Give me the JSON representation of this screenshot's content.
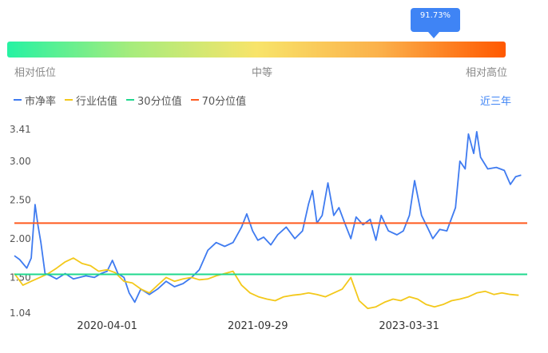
{
  "indicator": {
    "value_label": "91.73%",
    "percentile": 0.9173
  },
  "scale": {
    "low": "相对低位",
    "mid": "中等",
    "high": "相对高位"
  },
  "period": "近三年",
  "colors": {
    "pb": "#3f7bf0",
    "industry": "#f3c81a",
    "p30": "#1fd88e",
    "p70": "#ff5a1f"
  },
  "chart_data": {
    "type": "line",
    "x_ticks": [
      "2020-04-01",
      "2021-09-29",
      "2023-03-31"
    ],
    "y_ticks": [
      "1.04",
      "1.50",
      "2.00",
      "2.50",
      "3.00",
      "3.41"
    ],
    "ylim": [
      1.04,
      3.41
    ],
    "xlim": [
      "2019-05-01",
      "2024-06-01"
    ],
    "series": [
      {
        "name": "市净率",
        "points": [
          [
            "2019-05-01",
            1.78
          ],
          [
            "2019-05-20",
            1.73
          ],
          [
            "2019-06-15",
            1.62
          ],
          [
            "2019-07-01",
            1.75
          ],
          [
            "2019-07-15",
            2.44
          ],
          [
            "2019-07-25",
            2.18
          ],
          [
            "2019-08-05",
            1.95
          ],
          [
            "2019-08-20",
            1.55
          ],
          [
            "2019-09-10",
            1.52
          ],
          [
            "2019-10-01",
            1.48
          ],
          [
            "2019-11-01",
            1.55
          ],
          [
            "2019-12-01",
            1.48
          ],
          [
            "2020-01-15",
            1.52
          ],
          [
            "2020-02-15",
            1.5
          ],
          [
            "2020-03-10",
            1.55
          ],
          [
            "2020-04-01",
            1.58
          ],
          [
            "2020-04-20",
            1.72
          ],
          [
            "2020-05-10",
            1.55
          ],
          [
            "2020-06-01",
            1.5
          ],
          [
            "2020-06-20",
            1.3
          ],
          [
            "2020-07-10",
            1.18
          ],
          [
            "2020-08-01",
            1.35
          ],
          [
            "2020-09-01",
            1.28
          ],
          [
            "2020-10-01",
            1.35
          ],
          [
            "2020-11-01",
            1.45
          ],
          [
            "2020-12-01",
            1.38
          ],
          [
            "2021-01-01",
            1.42
          ],
          [
            "2021-02-01",
            1.5
          ],
          [
            "2021-03-01",
            1.6
          ],
          [
            "2021-04-01",
            1.85
          ],
          [
            "2021-05-01",
            1.95
          ],
          [
            "2021-06-01",
            1.9
          ],
          [
            "2021-07-01",
            1.95
          ],
          [
            "2021-08-01",
            2.15
          ],
          [
            "2021-08-20",
            2.32
          ],
          [
            "2021-09-10",
            2.1
          ],
          [
            "2021-09-29",
            1.98
          ],
          [
            "2021-10-20",
            2.02
          ],
          [
            "2021-11-15",
            1.92
          ],
          [
            "2021-12-10",
            2.05
          ],
          [
            "2022-01-10",
            2.15
          ],
          [
            "2022-02-10",
            2.0
          ],
          [
            "2022-03-10",
            2.1
          ],
          [
            "2022-04-01",
            2.45
          ],
          [
            "2022-04-15",
            2.62
          ],
          [
            "2022-05-01",
            2.2
          ],
          [
            "2022-05-20",
            2.3
          ],
          [
            "2022-06-10",
            2.72
          ],
          [
            "2022-07-01",
            2.3
          ],
          [
            "2022-07-20",
            2.4
          ],
          [
            "2022-08-10",
            2.2
          ],
          [
            "2022-09-01",
            2.0
          ],
          [
            "2022-09-20",
            2.28
          ],
          [
            "2022-10-15",
            2.18
          ],
          [
            "2022-11-10",
            2.25
          ],
          [
            "2022-12-01",
            1.98
          ],
          [
            "2022-12-20",
            2.3
          ],
          [
            "2023-01-15",
            2.1
          ],
          [
            "2023-02-15",
            2.05
          ],
          [
            "2023-03-10",
            2.1
          ],
          [
            "2023-04-01",
            2.3
          ],
          [
            "2023-04-20",
            2.75
          ],
          [
            "2023-05-15",
            2.3
          ],
          [
            "2023-06-05",
            2.15
          ],
          [
            "2023-06-25",
            2.0
          ],
          [
            "2023-07-20",
            2.12
          ],
          [
            "2023-08-15",
            2.1
          ],
          [
            "2023-09-15",
            2.4
          ],
          [
            "2023-10-01",
            3.0
          ],
          [
            "2023-10-20",
            2.9
          ],
          [
            "2023-11-01",
            3.35
          ],
          [
            "2023-11-20",
            3.1
          ],
          [
            "2023-12-01",
            3.38
          ],
          [
            "2023-12-15",
            3.05
          ],
          [
            "2024-01-10",
            2.9
          ],
          [
            "2024-02-10",
            2.92
          ],
          [
            "2024-03-10",
            2.88
          ],
          [
            "2024-04-01",
            2.7
          ],
          [
            "2024-04-20",
            2.8
          ],
          [
            "2024-05-10",
            2.82
          ]
        ]
      },
      {
        "name": "行业估值",
        "points": [
          [
            "2019-05-01",
            1.55
          ],
          [
            "2019-06-01",
            1.4
          ],
          [
            "2019-07-01",
            1.45
          ],
          [
            "2019-08-01",
            1.5
          ],
          [
            "2019-09-01",
            1.55
          ],
          [
            "2019-10-01",
            1.62
          ],
          [
            "2019-11-01",
            1.7
          ],
          [
            "2019-12-01",
            1.75
          ],
          [
            "2020-01-01",
            1.68
          ],
          [
            "2020-02-01",
            1.65
          ],
          [
            "2020-03-01",
            1.58
          ],
          [
            "2020-04-01",
            1.6
          ],
          [
            "2020-05-01",
            1.56
          ],
          [
            "2020-06-01",
            1.45
          ],
          [
            "2020-07-01",
            1.43
          ],
          [
            "2020-08-01",
            1.35
          ],
          [
            "2020-09-01",
            1.3
          ],
          [
            "2020-10-01",
            1.4
          ],
          [
            "2020-11-01",
            1.5
          ],
          [
            "2020-12-01",
            1.45
          ],
          [
            "2021-01-01",
            1.48
          ],
          [
            "2021-02-01",
            1.5
          ],
          [
            "2021-03-01",
            1.47
          ],
          [
            "2021-04-01",
            1.48
          ],
          [
            "2021-05-01",
            1.52
          ],
          [
            "2021-06-01",
            1.55
          ],
          [
            "2021-07-01",
            1.58
          ],
          [
            "2021-08-01",
            1.4
          ],
          [
            "2021-09-01",
            1.3
          ],
          [
            "2021-10-01",
            1.25
          ],
          [
            "2021-11-01",
            1.22
          ],
          [
            "2021-12-01",
            1.2
          ],
          [
            "2022-01-01",
            1.25
          ],
          [
            "2022-02-01",
            1.27
          ],
          [
            "2022-03-01",
            1.28
          ],
          [
            "2022-04-01",
            1.3
          ],
          [
            "2022-05-01",
            1.28
          ],
          [
            "2022-06-01",
            1.25
          ],
          [
            "2022-07-01",
            1.3
          ],
          [
            "2022-08-01",
            1.35
          ],
          [
            "2022-09-01",
            1.5
          ],
          [
            "2022-10-01",
            1.2
          ],
          [
            "2022-11-01",
            1.1
          ],
          [
            "2022-12-01",
            1.12
          ],
          [
            "2023-01-01",
            1.18
          ],
          [
            "2023-02-01",
            1.22
          ],
          [
            "2023-03-01",
            1.2
          ],
          [
            "2023-04-01",
            1.25
          ],
          [
            "2023-05-01",
            1.22
          ],
          [
            "2023-06-01",
            1.15
          ],
          [
            "2023-07-01",
            1.12
          ],
          [
            "2023-08-01",
            1.15
          ],
          [
            "2023-09-01",
            1.2
          ],
          [
            "2023-10-01",
            1.22
          ],
          [
            "2023-11-01",
            1.25
          ],
          [
            "2023-12-01",
            1.3
          ],
          [
            "2024-01-01",
            1.32
          ],
          [
            "2024-02-01",
            1.28
          ],
          [
            "2024-03-01",
            1.3
          ],
          [
            "2024-04-01",
            1.28
          ],
          [
            "2024-05-01",
            1.27
          ]
        ]
      },
      {
        "name": "30分位值",
        "value": 1.54
      },
      {
        "name": "70分位值",
        "value": 2.2
      }
    ]
  }
}
